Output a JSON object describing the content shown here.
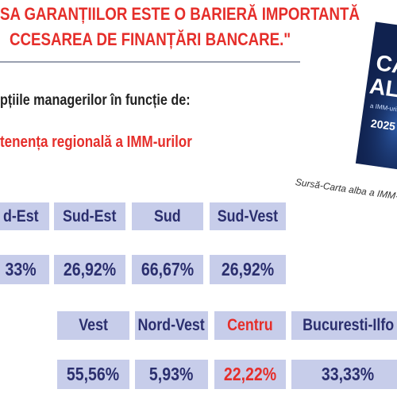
{
  "header": {
    "title": [
      "SA GARANȚIILOR ESTE O BARIERĂ IMPORTANTĂ",
      "CCESAREA DE FINANȚĂRI BANCARE.\""
    ]
  },
  "intro": "pțiile managerilor  în funcție  de:",
  "subtitle": "tenența regională a IMM-urilor",
  "book": {
    "title": [
      "CA",
      "AL"
    ],
    "subtitle": "a IMM-urilor d",
    "year": "2025"
  },
  "source": "Sursă-Carta alba a IMM-u",
  "rows": [
    {
      "regions": [
        "d-Est",
        "Sud-Est",
        "Sud",
        "Sud-Vest"
      ],
      "values": [
        "33%",
        "26,92%",
        "66,67%",
        "26,92%"
      ]
    },
    {
      "regions": [
        "Vest",
        "Nord-Vest",
        "Centru",
        "Bucuresti-Ilfo"
      ],
      "values": [
        "55,56%",
        "5,93%",
        "22,22%",
        "33,33%"
      ]
    }
  ]
}
